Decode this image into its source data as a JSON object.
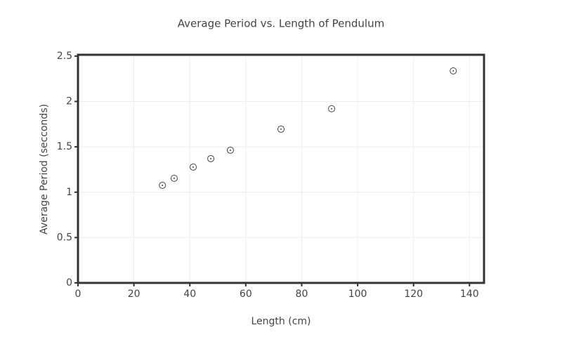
{
  "chart_data": {
    "type": "scatter",
    "title": "Average Period vs. Length of Pendulum",
    "x_label": "Length (cm)",
    "y_label": "Average Period (secconds)",
    "x": [
      30.2,
      34.4,
      41.2,
      47.5,
      54.5,
      72.6,
      90.7,
      134.2
    ],
    "values": [
      1.076,
      1.153,
      1.277,
      1.37,
      1.463,
      1.695,
      1.92,
      2.337
    ],
    "color": "#444444",
    "xlim": [
      0,
      145.2
    ],
    "xticks": [
      0,
      20,
      40,
      60,
      80,
      100,
      120,
      140
    ],
    "ylim": [
      0,
      2.515
    ],
    "yticks": [
      0,
      0.5,
      1,
      1.5,
      2,
      2.5
    ],
    "grid": true
  }
}
